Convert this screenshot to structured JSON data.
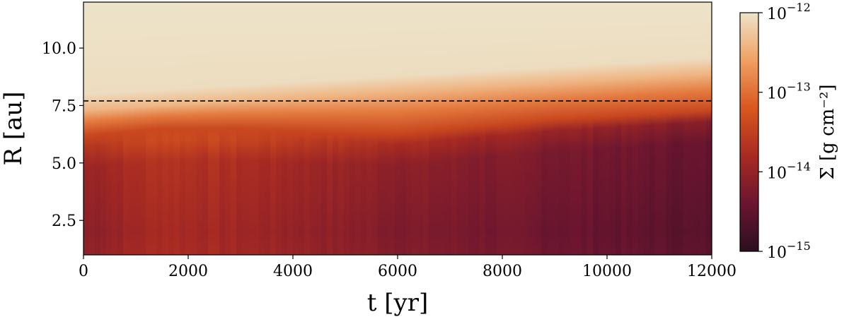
{
  "chart_data": {
    "type": "heatmap",
    "title": "",
    "xlabel": "t [yr]",
    "ylabel": "R [au]",
    "xlim": [
      0,
      12000
    ],
    "ylim": [
      1.0,
      12.0
    ],
    "x_ticks": [
      0,
      2000,
      4000,
      6000,
      8000,
      10000,
      12000
    ],
    "x_tick_labels": [
      "0",
      "2000",
      "4000",
      "6000",
      "8000",
      "10000",
      "12000"
    ],
    "y_ticks": [
      2.5,
      5.0,
      7.5,
      10.0
    ],
    "y_tick_labels": [
      "2.5",
      "5.0",
      "7.5",
      "10.0"
    ],
    "colorbar": {
      "label": "Σ [g cm⁻²]",
      "scale": "log",
      "range": [
        1e-15,
        1e-12
      ],
      "ticks": [
        {
          "value": 1e-15,
          "base": "10",
          "exp": "−15"
        },
        {
          "value": 1e-14,
          "base": "10",
          "exp": "−14"
        },
        {
          "value": 1e-13,
          "base": "10",
          "exp": "−13"
        },
        {
          "value": 1e-12,
          "base": "10",
          "exp": "−12"
        }
      ],
      "colors": [
        "#2a0f1f",
        "#6b1530",
        "#a82a22",
        "#d9571e",
        "#f0a062",
        "#ede3c9"
      ]
    },
    "reference_line": {
      "y": 7.7,
      "style": "dashed",
      "color": "#000000"
    },
    "field_profile": [
      {
        "t": 0,
        "R_inner_edge": 6.0,
        "R_transition": 7.0,
        "inner_log_sigma": -14.1
      },
      {
        "t": 1500,
        "R_inner_edge": 6.3,
        "R_transition": 7.2,
        "inner_log_sigma": -13.8
      },
      {
        "t": 3000,
        "R_inner_edge": 6.3,
        "R_transition": 7.4,
        "inner_log_sigma": -13.9
      },
      {
        "t": 6000,
        "R_inner_edge": 6.1,
        "R_transition": 7.8,
        "inner_log_sigma": -14.2
      },
      {
        "t": 9000,
        "R_inner_edge": 6.7,
        "R_transition": 8.2,
        "inner_log_sigma": -14.4
      },
      {
        "t": 12000,
        "R_inner_edge": 7.1,
        "R_transition": 8.6,
        "inner_log_sigma": -14.6
      }
    ]
  }
}
